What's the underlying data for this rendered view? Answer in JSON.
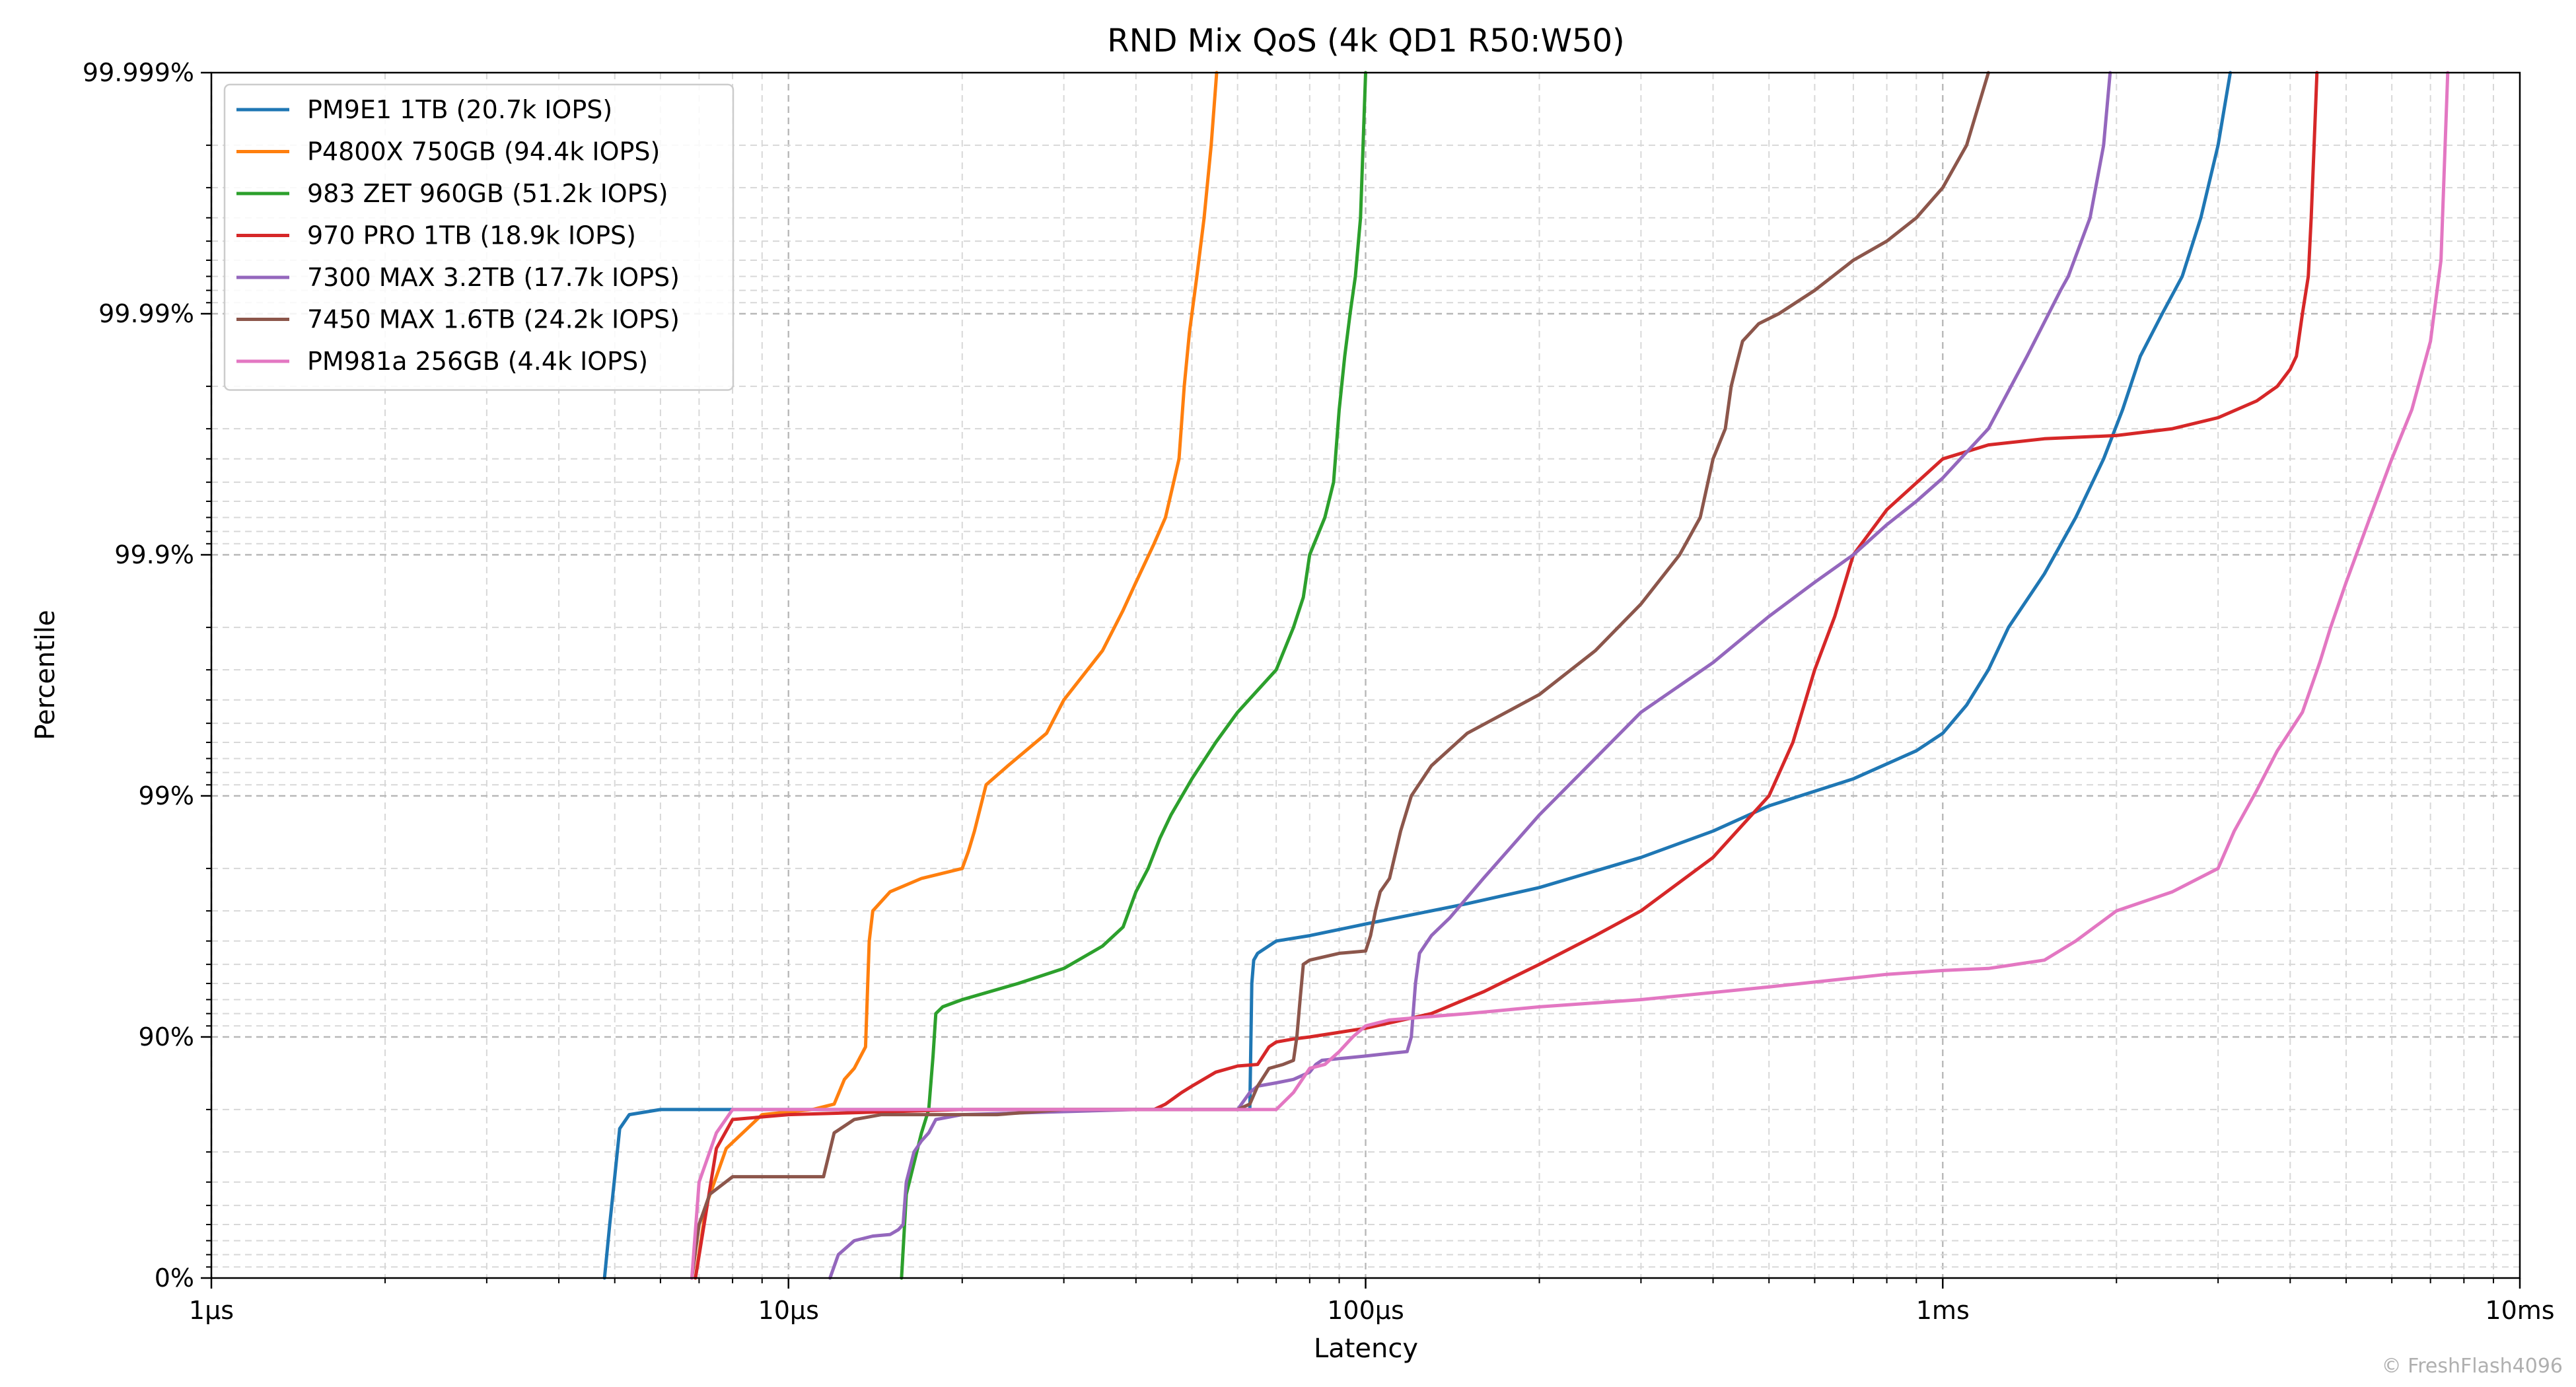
{
  "chart_data": {
    "type": "line",
    "title": "RND Mix QoS (4k QD1 R50:W50)",
    "xlabel": "Latency",
    "ylabel": "Percentile",
    "x_scale": "log",
    "y_scale": "log-nines",
    "xlim_us": [
      1,
      10000
    ],
    "ylim_percent": [
      0,
      99.999
    ],
    "x_ticks": [
      {
        "value": 1,
        "label": "1µs"
      },
      {
        "value": 10,
        "label": "10µs"
      },
      {
        "value": 100,
        "label": "100µs"
      },
      {
        "value": 1000,
        "label": "1ms"
      },
      {
        "value": 10000,
        "label": "10ms"
      }
    ],
    "y_ticks": [
      {
        "value": 0,
        "label": "0%"
      },
      {
        "value": 90,
        "label": "90%"
      },
      {
        "value": 99,
        "label": "99%"
      },
      {
        "value": 99.9,
        "label": "99.9%"
      },
      {
        "value": 99.99,
        "label": "99.99%"
      },
      {
        "value": 99.999,
        "label": "99.999%"
      }
    ],
    "grid": true,
    "legend_position": "top-left",
    "series": [
      {
        "name": "PM9E1 1TB (20.7k IOPS)",
        "color": "#1f77b4",
        "x": [
          4.8,
          4.9,
          5.0,
          5.1,
          5.3,
          6,
          10,
          17,
          30,
          63,
          63.5,
          64,
          65,
          70,
          80,
          100,
          150,
          200,
          300,
          400,
          500,
          700,
          900,
          1000,
          1100,
          1200,
          1300,
          1500,
          1700,
          1900,
          2050,
          2200,
          2400,
          2600,
          2800,
          3000,
          3150
        ],
        "y": [
          0,
          40,
          62,
          76,
          79,
          80,
          80,
          80,
          80,
          80,
          94,
          95.2,
          95.5,
          96,
          96.2,
          96.6,
          97.2,
          97.6,
          98.2,
          98.6,
          98.9,
          99.15,
          99.35,
          99.45,
          99.58,
          99.7,
          99.8,
          99.88,
          99.93,
          99.96,
          99.975,
          99.985,
          99.99,
          99.993,
          99.996,
          99.998,
          99.999
        ]
      },
      {
        "name": "P4800X 750GB (94.4k IOPS)",
        "color": "#ff7f0e",
        "x": [
          6.9,
          7.2,
          7.8,
          9,
          11,
          12,
          12.5,
          13,
          13.6,
          13.8,
          14,
          15,
          17,
          20,
          20.5,
          21,
          22,
          24,
          28,
          30,
          35,
          38,
          40,
          43,
          45,
          46.5,
          47.5,
          48.5,
          49.5,
          51,
          52.5,
          54,
          55.2
        ],
        "y": [
          0,
          50,
          71,
          79,
          80,
          81,
          85,
          86.5,
          89,
          96,
          97,
          97.5,
          97.8,
          98.0,
          98.3,
          98.6,
          99.1,
          99.25,
          99.45,
          99.6,
          99.75,
          99.83,
          99.87,
          99.91,
          99.93,
          99.95,
          99.96,
          99.98,
          99.988,
          99.993,
          99.996,
          99.998,
          99.999
        ]
      },
      {
        "name": "983 ZET 960GB (51.2k IOPS)",
        "color": "#2ca02c",
        "x": [
          15.7,
          16,
          17,
          17.5,
          17.8,
          18,
          18.5,
          20,
          25,
          30,
          35,
          38,
          40,
          42,
          44,
          46,
          50,
          55,
          60,
          70,
          75,
          78,
          80,
          85,
          88,
          90,
          92,
          94,
          96,
          98,
          100
        ],
        "y": [
          0,
          55,
          75,
          80,
          88,
          92,
          92.5,
          93,
          94,
          94.8,
          95.8,
          96.5,
          97.5,
          98.0,
          98.5,
          98.8,
          99.15,
          99.4,
          99.55,
          99.7,
          99.8,
          99.85,
          99.9,
          99.93,
          99.95,
          99.975,
          99.985,
          99.99,
          99.993,
          99.996,
          99.999
        ]
      },
      {
        "name": "970 PRO 1TB (18.9k IOPS)",
        "color": "#d62728",
        "x": [
          6.9,
          7.5,
          8,
          10,
          20,
          43,
          45,
          48,
          50,
          55,
          60,
          65,
          68,
          70,
          75,
          80,
          100,
          130,
          160,
          200,
          250,
          300,
          400,
          500,
          550,
          600,
          650,
          700,
          800,
          1000,
          1200,
          1500,
          2000,
          2500,
          3000,
          3500,
          3800,
          4000,
          4100,
          4200,
          4300,
          4350,
          4400,
          4450
        ],
        "y": [
          0,
          71,
          78,
          79,
          80,
          80,
          81,
          83,
          84,
          86,
          86.8,
          87,
          89,
          89.5,
          89.8,
          90,
          90.8,
          92,
          93.5,
          95,
          96.2,
          97,
          98.2,
          99.0,
          99.4,
          99.7,
          99.82,
          99.9,
          99.935,
          99.96,
          99.965,
          99.967,
          99.968,
          99.97,
          99.973,
          99.977,
          99.98,
          99.983,
          99.985,
          99.99,
          99.993,
          99.996,
          99.998,
          99.999
        ]
      },
      {
        "name": "7300 MAX 3.2TB (17.7k IOPS)",
        "color": "#9467bd",
        "x": [
          11.8,
          12.2,
          13,
          14,
          15,
          15.5,
          15.8,
          16,
          16.5,
          17,
          17.5,
          18,
          20,
          40,
          60,
          63,
          65,
          70,
          75,
          80,
          82,
          84,
          100,
          110,
          118,
          120,
          122,
          124,
          130,
          140,
          160,
          200,
          300,
          400,
          500,
          600,
          700,
          800,
          900,
          1000,
          1200,
          1400,
          1600,
          1650,
          1800,
          1900,
          1950
        ],
        "y": [
          0,
          20,
          30,
          33,
          34,
          37,
          40,
          60,
          70,
          73,
          75,
          78,
          79,
          80,
          80,
          83,
          84,
          84.5,
          85,
          86,
          87,
          87.5,
          88,
          88.3,
          88.5,
          90,
          94,
          95.5,
          96.2,
          96.8,
          97.8,
          98.8,
          99.55,
          99.72,
          99.82,
          99.87,
          99.9,
          99.925,
          99.94,
          99.952,
          99.97,
          99.985,
          99.992,
          99.993,
          99.996,
          99.998,
          99.999
        ]
      },
      {
        "name": "7450 MAX 1.6TB (24.2k IOPS)",
        "color": "#8c564b",
        "x": [
          6.8,
          7,
          7.3,
          8,
          10,
          11.5,
          12,
          13,
          14.5,
          15,
          16,
          23,
          30,
          60,
          63,
          65,
          68,
          72,
          75,
          76,
          77,
          78,
          80,
          90,
          100,
          102,
          104,
          106,
          110,
          115,
          120,
          130,
          150,
          200,
          250,
          300,
          350,
          380,
          400,
          420,
          430,
          440,
          450,
          480,
          520,
          600,
          700,
          800,
          900,
          1000,
          1100,
          1200
        ],
        "y": [
          0,
          40,
          55,
          62,
          62,
          62,
          75,
          78,
          79,
          79,
          79,
          79,
          80,
          80,
          81,
          84,
          86.5,
          87,
          87.5,
          90,
          93,
          95,
          95.2,
          95.5,
          95.6,
          96.2,
          97,
          97.5,
          97.8,
          98.6,
          99.0,
          99.25,
          99.45,
          99.62,
          99.75,
          99.84,
          99.9,
          99.93,
          99.96,
          99.97,
          99.98,
          99.984,
          99.987,
          99.989,
          99.99,
          99.992,
          99.994,
          99.995,
          99.996,
          99.997,
          99.998,
          99.999
        ]
      },
      {
        "name": "PM981a 256GB (4.4k IOPS)",
        "color": "#e377c2",
        "x": [
          6.8,
          7,
          7.5,
          8,
          10,
          20,
          50,
          70,
          75,
          80,
          85,
          90,
          95,
          100,
          110,
          150,
          200,
          300,
          500,
          800,
          1000,
          1200,
          1500,
          1700,
          2000,
          2500,
          3000,
          3200,
          3500,
          3800,
          4200,
          4500,
          4700,
          5000,
          5500,
          6000,
          6500,
          7000,
          7300,
          7500
        ],
        "y": [
          0,
          60,
          75,
          80,
          80,
          80,
          80,
          80,
          83,
          86.5,
          87,
          88.5,
          90,
          91,
          91.5,
          92,
          92.5,
          93,
          93.8,
          94.5,
          94.7,
          94.8,
          95.2,
          96,
          97,
          97.5,
          98,
          98.6,
          99.05,
          99.35,
          99.55,
          99.72,
          99.8,
          99.87,
          99.93,
          99.96,
          99.975,
          99.987,
          99.994,
          99.999
        ]
      }
    ]
  },
  "copyright": "© FreshFlash4096"
}
